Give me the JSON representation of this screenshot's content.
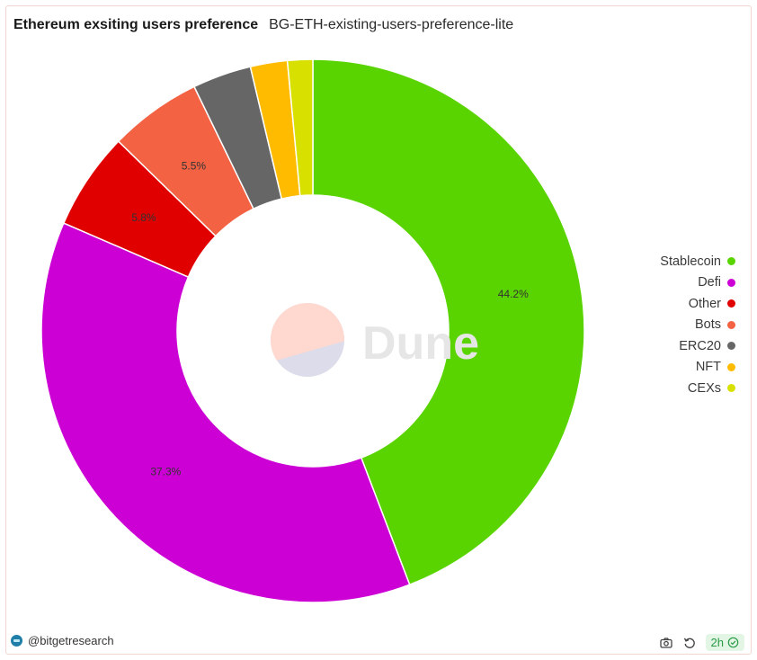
{
  "header": {
    "title": "Ethereum exsiting users preference",
    "subtitle": "BG-ETH-existing-users-preference-lite"
  },
  "watermark": {
    "text": "Dune"
  },
  "footer": {
    "author": "@bitgetresearch",
    "refresh": "2h"
  },
  "icons": [
    "camera-icon",
    "refresh-icon",
    "check-circle-icon"
  ],
  "chart_data": {
    "type": "pie",
    "donut": true,
    "categories": [
      "Stablecoin",
      "Defi",
      "Other",
      "Bots",
      "ERC20",
      "NFT",
      "CEXs"
    ],
    "values": [
      44.2,
      37.3,
      5.8,
      5.5,
      3.5,
      2.2,
      1.5
    ],
    "colors": [
      "#5ad400",
      "#cc00d4",
      "#e00000",
      "#f26243",
      "#666666",
      "#ffbb00",
      "#d8e000"
    ],
    "data_labels": [
      "44.2%",
      "37.3%",
      "5.8%",
      "5.5%",
      "",
      "",
      ""
    ],
    "legend_position": "right"
  }
}
